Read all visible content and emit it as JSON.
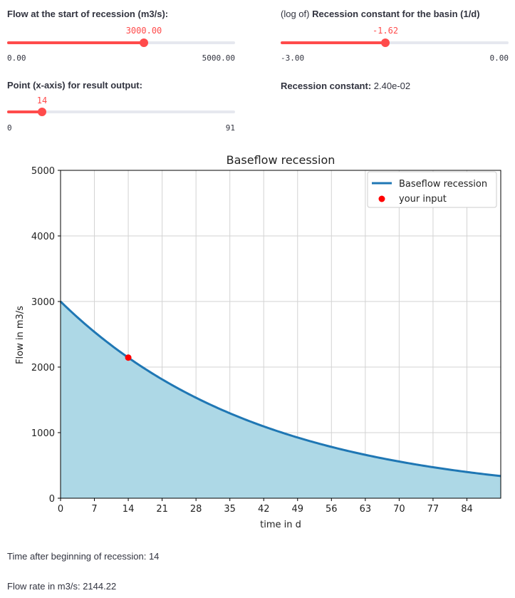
{
  "sliders": {
    "flow_start": {
      "label": "Flow at the start of recession (m3/s):",
      "value_text": "3000.00",
      "min_text": "0.00",
      "max_text": "5000.00",
      "value": 3000,
      "min": 0,
      "max": 5000
    },
    "recession_log": {
      "label_prefix": "(log of)",
      "label_bold": "Recession constant for the basin (1/d)",
      "value_text": "-1.62",
      "min_text": "-3.00",
      "max_text": "0.00",
      "value": -1.62,
      "min": -3,
      "max": 0
    },
    "output_point": {
      "label": "Point (x-axis) for result output:",
      "value_text": "14",
      "min_text": "0",
      "max_text": "91",
      "value": 14,
      "min": 0,
      "max": 91
    }
  },
  "recession_constant": {
    "label": "Recession constant:",
    "value": "2.40e-02"
  },
  "results": {
    "time_label": "Time after beginning of recession: 14",
    "flow_label": "Flow rate in m3/s: 2144.22"
  },
  "colors": {
    "accent": "#ff4b4b",
    "line": "#1f77b4",
    "fill": "#add8e6",
    "point": "#ff0000"
  },
  "chart_data": {
    "type": "line",
    "title": "Baseflow recession",
    "xlabel": "time in d",
    "ylabel": "Flow in m3/s",
    "xlim": [
      0,
      91
    ],
    "ylim": [
      0,
      5000
    ],
    "xticks": [
      0,
      7,
      14,
      21,
      28,
      35,
      42,
      49,
      56,
      63,
      70,
      77,
      84
    ],
    "yticks": [
      0,
      1000,
      2000,
      3000,
      4000,
      5000
    ],
    "grid": true,
    "legend_position": "top-right",
    "series": [
      {
        "name": "Baseflow recession",
        "kind": "line-with-fill",
        "x": [
          0,
          7,
          14,
          21,
          28,
          35,
          42,
          49,
          56,
          63,
          70,
          77,
          84,
          91
        ],
        "y": [
          3000,
          2536,
          2144,
          1813,
          1532,
          1296,
          1095,
          926,
          783,
          662,
          559,
          473,
          400,
          338
        ]
      },
      {
        "name": "your input",
        "kind": "point",
        "x": [
          14
        ],
        "y": [
          2144.22
        ]
      }
    ]
  }
}
